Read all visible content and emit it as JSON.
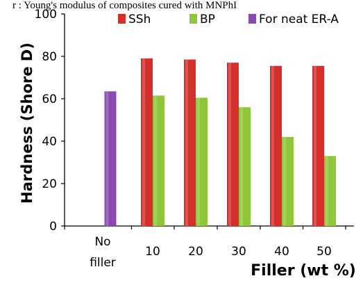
{
  "caption": "r : Young's modulus of composites cured with MNPhI",
  "chart_data": {
    "type": "bar",
    "categories": [
      "No filler",
      "10",
      "20",
      "30",
      "40",
      "50"
    ],
    "category_lines": [
      [
        "No",
        "filler"
      ],
      [
        "10"
      ],
      [
        "20"
      ],
      [
        "30"
      ],
      [
        "40"
      ],
      [
        "50"
      ]
    ],
    "series": [
      {
        "name": "SSh",
        "values": [
          null,
          79,
          78.5,
          77,
          75.5,
          75.5
        ],
        "color": "#d42f2b"
      },
      {
        "name": "BP",
        "values": [
          null,
          61.5,
          60.5,
          56,
          42,
          33
        ],
        "color": "#8fc63a"
      },
      {
        "name": "For neat ER-A",
        "values": [
          63.5,
          null,
          null,
          null,
          null,
          null
        ],
        "color": "#8a4bb0"
      }
    ],
    "xlabel": "Filler (wt %)",
    "ylabel": "Hardness (Shore D)",
    "ylim": [
      0,
      100
    ],
    "yticks": [
      0,
      20,
      40,
      60,
      80,
      100
    ],
    "legend_position": "top",
    "grid": false
  }
}
